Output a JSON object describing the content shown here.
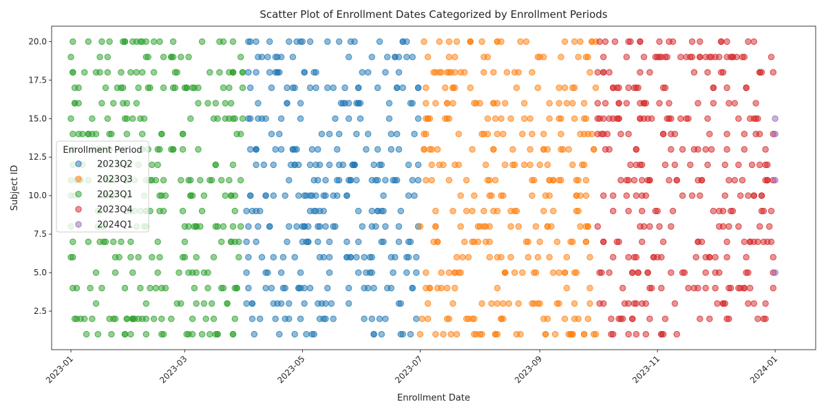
{
  "chart_data": {
    "type": "scatter",
    "title": "Scatter Plot of Enrollment Dates Categorized by Enrollment Periods",
    "xlabel": "Enrollment Date",
    "ylabel": "Subject ID",
    "xlim": [
      "2022-12-22",
      "2024-01-22"
    ],
    "ylim": [
      0,
      21
    ],
    "x_ticks": [
      "2023-01",
      "2023-03",
      "2023-05",
      "2023-07",
      "2023-09",
      "2023-11",
      "2024-01"
    ],
    "y_ticks": [
      2.5,
      5.0,
      7.5,
      10.0,
      12.5,
      15.0,
      17.5,
      20.0
    ],
    "y_tick_labels": [
      "2.5",
      "5.0",
      "7.5",
      "10.0",
      "12.5",
      "15.0",
      "17.5",
      "20.0"
    ],
    "grid": false,
    "legend": {
      "title": "Enrollment Period",
      "position": "center-left"
    },
    "point_opacity": 0.5,
    "series": [
      {
        "name": "2023Q2",
        "color": "#1f77b4",
        "start": "2023-04-01",
        "end": "2023-06-30",
        "count": 330,
        "seed": 2,
        "points": []
      },
      {
        "name": "2023Q3",
        "color": "#ff7f0e",
        "start": "2023-07-01",
        "end": "2023-09-30",
        "count": 330,
        "seed": 3,
        "points": []
      },
      {
        "name": "2023Q1",
        "color": "#2ca02c",
        "start": "2023-01-01",
        "end": "2023-03-31",
        "count": 330,
        "seed": 1,
        "points": []
      },
      {
        "name": "2023Q4",
        "color": "#d62728",
        "start": "2023-10-01",
        "end": "2023-12-31",
        "count": 330,
        "seed": 4,
        "points": []
      },
      {
        "name": "2024Q1",
        "color": "#9467bd",
        "start": "2024-01-01",
        "end": "2024-01-01",
        "count": 0,
        "seed": 5,
        "points": [
          [
            "2024-01-01",
            15
          ],
          [
            "2024-01-01",
            14
          ],
          [
            "2024-01-01",
            11
          ],
          [
            "2024-01-01",
            5
          ]
        ]
      }
    ]
  }
}
